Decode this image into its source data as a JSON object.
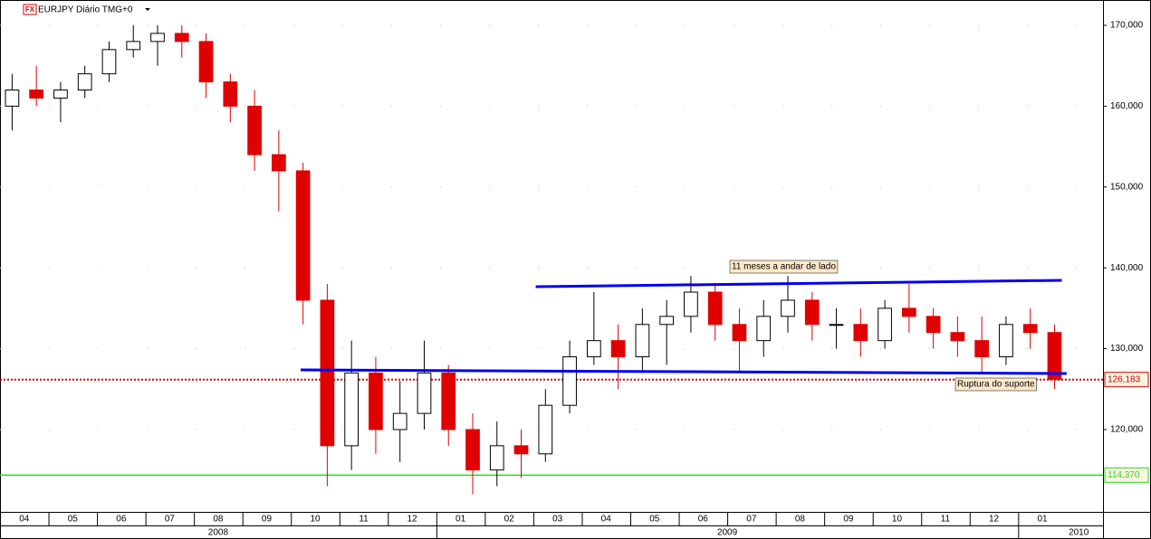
{
  "chart_data": {
    "type": "candlestick",
    "icon": "FX",
    "title": "EURJPY Diário TMG+0",
    "candles": {
      "open": [
        160,
        162,
        161,
        162,
        164,
        167,
        168,
        169,
        168,
        163,
        160,
        154,
        152,
        136,
        118,
        127,
        120,
        122,
        127,
        120,
        115,
        118,
        117,
        123,
        129,
        131,
        129,
        133,
        134,
        137,
        133,
        131,
        134,
        136,
        133,
        133,
        131,
        135,
        134,
        132,
        131,
        129,
        133,
        132
      ],
      "high": [
        164,
        165,
        163,
        165,
        168,
        170,
        170,
        170,
        169,
        164,
        162,
        157,
        153,
        138,
        131,
        129,
        126,
        131,
        128,
        122,
        121,
        120,
        125,
        131,
        137,
        133,
        135,
        136,
        139,
        138,
        135,
        136,
        139,
        137,
        135,
        135,
        136,
        138,
        135,
        134,
        134,
        134,
        135,
        133
      ],
      "low": [
        157,
        160,
        158,
        161,
        163,
        166,
        165,
        166,
        161,
        158,
        152,
        147,
        133,
        113,
        115,
        117,
        116,
        120,
        118,
        112,
        113,
        114,
        116,
        122,
        128,
        125,
        127,
        128,
        132,
        131,
        127,
        129,
        132,
        131,
        130,
        129,
        130,
        132,
        130,
        129,
        127,
        128,
        130,
        125
      ],
      "close": [
        162,
        161,
        162,
        164,
        167,
        168,
        169,
        168,
        163,
        160,
        154,
        152,
        136,
        118,
        127,
        120,
        122,
        127,
        120,
        115,
        118,
        117,
        123,
        129,
        131,
        129,
        133,
        134,
        137,
        133,
        131,
        134,
        136,
        133,
        133,
        131,
        135,
        134,
        132,
        131,
        129,
        133,
        132,
        126.183
      ]
    },
    "up_color": "#000000",
    "down_color": "#e00000",
    "months": [
      "04",
      "05",
      "06",
      "07",
      "08",
      "09",
      "10",
      "11",
      "12",
      "01",
      "02",
      "03",
      "04",
      "05",
      "06",
      "07",
      "08",
      "09",
      "10",
      "11",
      "12",
      "01"
    ],
    "years": [
      "2008",
      "2009",
      "2010"
    ],
    "xlim": [
      0,
      45.5
    ],
    "ylim": [
      109.82,
      173.13
    ],
    "yticks": [
      {
        "value": 120,
        "label": "120,000"
      },
      {
        "value": 130,
        "label": "130,000"
      },
      {
        "value": 140,
        "label": "140,000"
      },
      {
        "value": 150,
        "label": "150,000"
      },
      {
        "value": 160,
        "label": "160,000"
      },
      {
        "value": 170,
        "label": "170,000"
      }
    ],
    "levels": [
      {
        "value": 126.183,
        "label": "126,183",
        "color": "#d00000",
        "style": "dotted"
      },
      {
        "value": 114.37,
        "label": "114,370",
        "color": "#22dd22",
        "style": "solid"
      }
    ],
    "trendlines": [
      {
        "x": [
          22.1,
          43.8
        ],
        "y": [
          137.67,
          138.46
        ],
        "color": "#0000ee"
      },
      {
        "x": [
          12.4,
          44.0
        ],
        "y": [
          127.38,
          126.93
        ],
        "color": "#0000ee"
      }
    ],
    "annotations": [
      "11 meses a andar de lado",
      "Ruptura do suporte"
    ]
  }
}
